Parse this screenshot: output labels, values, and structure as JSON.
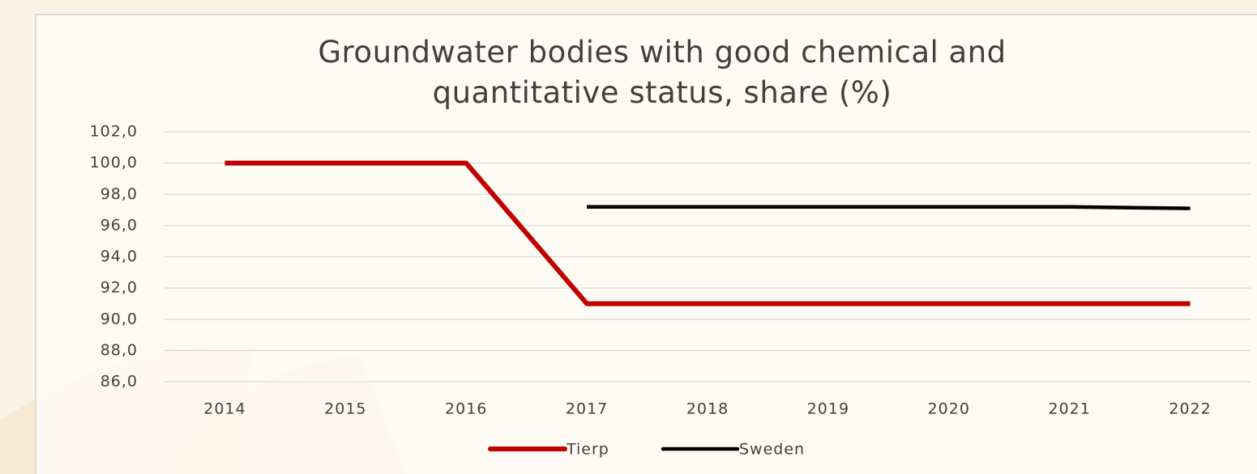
{
  "chart_data": {
    "type": "line",
    "title": "Groundwater bodies with good chemical and quantitative status, share (%)",
    "categories": [
      "2014",
      "2015",
      "2016",
      "2017",
      "2018",
      "2019",
      "2020",
      "2021",
      "2022"
    ],
    "series": [
      {
        "name": "Tierp",
        "color": "#c00000",
        "values": [
          100,
          100,
          100,
          91,
          91,
          91,
          91,
          91,
          91
        ]
      },
      {
        "name": "Sweden",
        "color": "#000000",
        "values": [
          null,
          null,
          null,
          97.2,
          97.2,
          97.2,
          97.2,
          97.2,
          97.1
        ]
      }
    ],
    "ylim": [
      86,
      102
    ],
    "yticks": [
      {
        "value": 86,
        "label": "86,0"
      },
      {
        "value": 88,
        "label": "88,0"
      },
      {
        "value": 90,
        "label": "90,0"
      },
      {
        "value": 92,
        "label": "92,0"
      },
      {
        "value": 94,
        "label": "94,0"
      },
      {
        "value": 96,
        "label": "96,0"
      },
      {
        "value": 98,
        "label": "98,0"
      },
      {
        "value": 100,
        "label": "100,0"
      },
      {
        "value": 102,
        "label": "102,0"
      }
    ],
    "grid": true,
    "legend": "bottom"
  }
}
